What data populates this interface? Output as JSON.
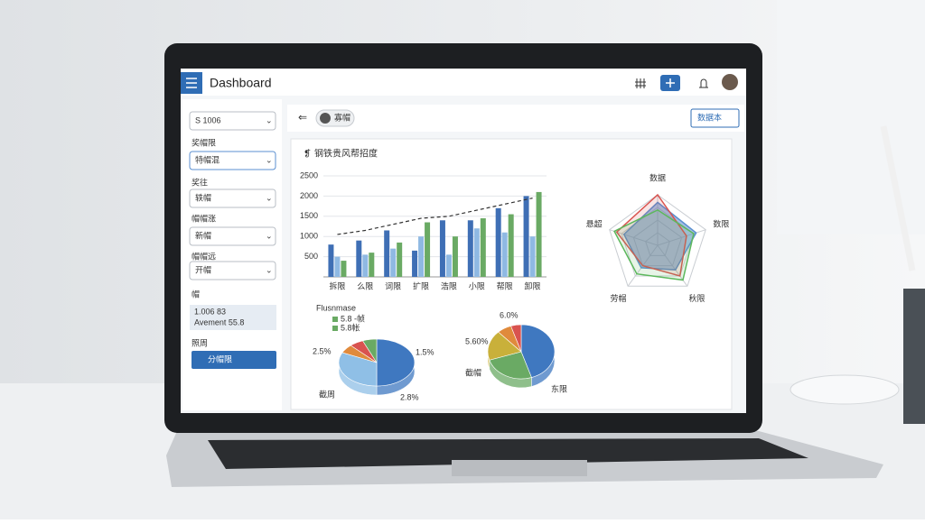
{
  "header": {
    "title": "Dashboard"
  },
  "sidebar": {
    "select": "S 1006",
    "fields": [
      {
        "label": "奖帽限",
        "value": "特帽混"
      },
      {
        "label": "奖往",
        "value": "轶帽"
      },
      {
        "label": "帽帽涨",
        "value": "新帽"
      },
      {
        "label": "帽帽远",
        "value": "开帽"
      }
    ],
    "summary_label": "帽",
    "summary": [
      "1.006 83",
      "Avement 55.8"
    ],
    "action_label": "照周",
    "action": "分帽限"
  },
  "toolbar": {
    "chip": "寡帽",
    "button": "数据本"
  },
  "card_title": "钢铁贵风帮招度",
  "chart_data": [
    {
      "type": "bar",
      "categories": [
        "拆限",
        "么限",
        "词限",
        "扩限",
        "浩限",
        "小限",
        "帮限",
        "卸限"
      ],
      "ylim": [
        0,
        2500
      ],
      "yticks": [
        500,
        1000,
        1500,
        2000,
        2500
      ],
      "grid": true,
      "series": [
        {
          "color": "#3f6fb5",
          "values": [
            800,
            900,
            1150,
            650,
            1400,
            1400,
            1700,
            2000
          ]
        },
        {
          "color": "#8fb9e3",
          "values": [
            500,
            550,
            700,
            1000,
            550,
            1200,
            1100,
            1000
          ]
        },
        {
          "color": "#6aaa64",
          "values": [
            400,
            600,
            850,
            1350,
            1000,
            1450,
            1550,
            2100
          ]
        },
        {
          "type": "line",
          "color": "#333333",
          "values": [
            1050,
            1150,
            1300,
            1450,
            1500,
            1650,
            1800,
            1950
          ]
        }
      ]
    },
    {
      "type": "radar",
      "categories": [
        "数据",
        "数限",
        "秋限",
        "劳帽",
        "悬超"
      ],
      "rlim": [
        0,
        100
      ],
      "series": [
        {
          "color": "#5b8fd0",
          "values": [
            85,
            80,
            60,
            55,
            70
          ]
        },
        {
          "color": "#d9534f",
          "values": [
            100,
            60,
            75,
            50,
            85
          ]
        },
        {
          "color": "#5cb85c",
          "values": [
            70,
            75,
            85,
            70,
            90
          ]
        }
      ]
    },
    {
      "type": "pie",
      "title": "Flusnmase",
      "values": [
        50,
        32,
        6,
        6,
        6
      ],
      "colors": [
        "#3f78c0",
        "#8fbfe6",
        "#e08a3c",
        "#d9534f",
        "#6aaa64"
      ],
      "legend": [
        "5.8 -帧",
        "5.8帐"
      ],
      "annotations": [
        "2.5%",
        "1.5%",
        "截周",
        "2.8%"
      ]
    },
    {
      "type": "pie",
      "values": [
        45,
        25,
        18,
        7,
        5
      ],
      "colors": [
        "#3f78c0",
        "#6aaa64",
        "#c9b03a",
        "#e08a3c",
        "#d9534f"
      ],
      "annotations": [
        "6.0%",
        "5.60%",
        "截帽",
        "东限"
      ]
    }
  ]
}
